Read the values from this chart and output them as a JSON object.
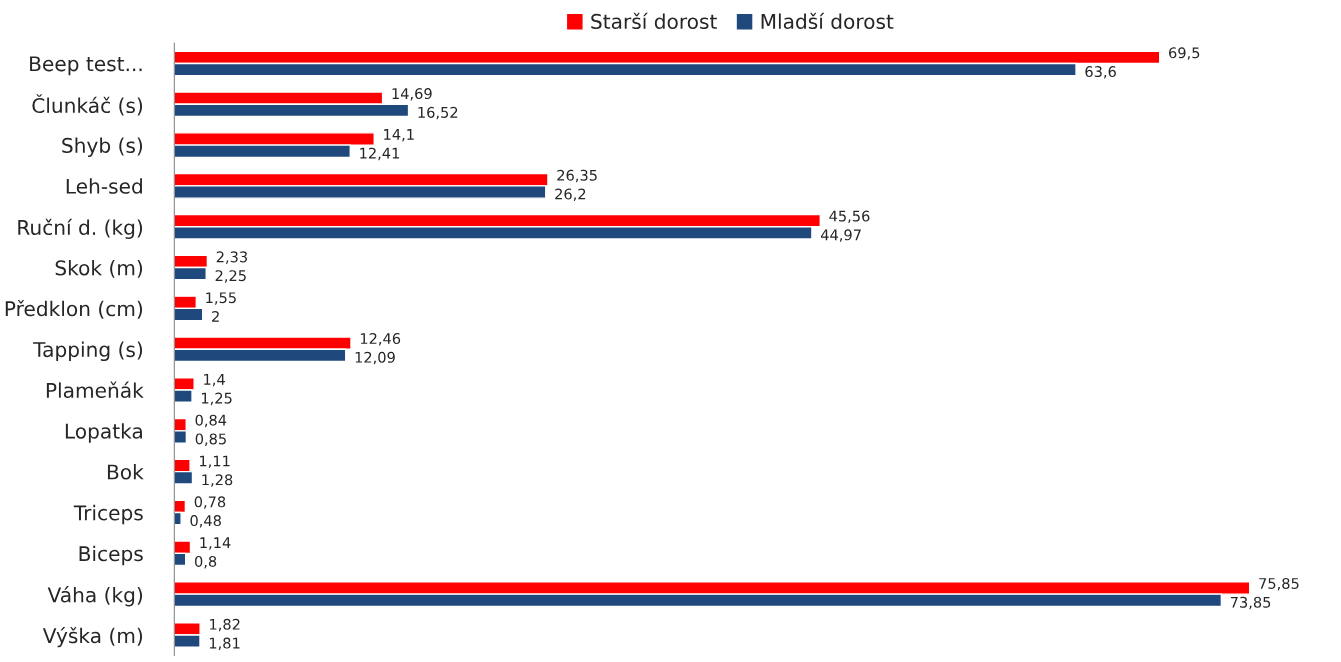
{
  "chart_data": {
    "type": "bar",
    "orientation": "horizontal",
    "legend": "top",
    "grid": false,
    "categories": [
      "Beep test...",
      "Člunkáč (s)",
      "Shyb (s)",
      "Leh-sed",
      "Ruční d. (kg)",
      "Skok (m)",
      "Předklon (cm)",
      "Tapping (s)",
      "Plameňák",
      "Lopatka",
      "Bok",
      "Triceps",
      "Biceps",
      "Váha (kg)",
      "Výška (m)"
    ],
    "series": [
      {
        "name": "Starší dorost",
        "color": "#ff0000",
        "values": [
          69.5,
          14.69,
          14.1,
          26.35,
          45.56,
          2.33,
          1.55,
          12.46,
          1.4,
          0.84,
          1.11,
          0.78,
          1.14,
          75.85,
          1.82
        ],
        "value_labels": [
          "69,5",
          "14,69",
          "14,1",
          "26,35",
          "45,56",
          "2,33",
          "1,55",
          "12,46",
          "1,4",
          "0,84",
          "1,11",
          "0,78",
          "1,14",
          "75,85",
          "1,82"
        ]
      },
      {
        "name": "Mladší dorost",
        "color": "#1f497d",
        "values": [
          63.6,
          16.52,
          12.41,
          26.2,
          44.97,
          2.25,
          2,
          12.09,
          1.25,
          0.85,
          1.28,
          0.48,
          0.8,
          73.85,
          1.81
        ],
        "value_labels": [
          "63,6",
          "16,52",
          "12,41",
          "26,2",
          "44,97",
          "2,25",
          "2",
          "12,09",
          "1,25",
          "0,85",
          "1,28",
          "0,48",
          "0,8",
          "73,85",
          "1,81"
        ]
      }
    ]
  }
}
